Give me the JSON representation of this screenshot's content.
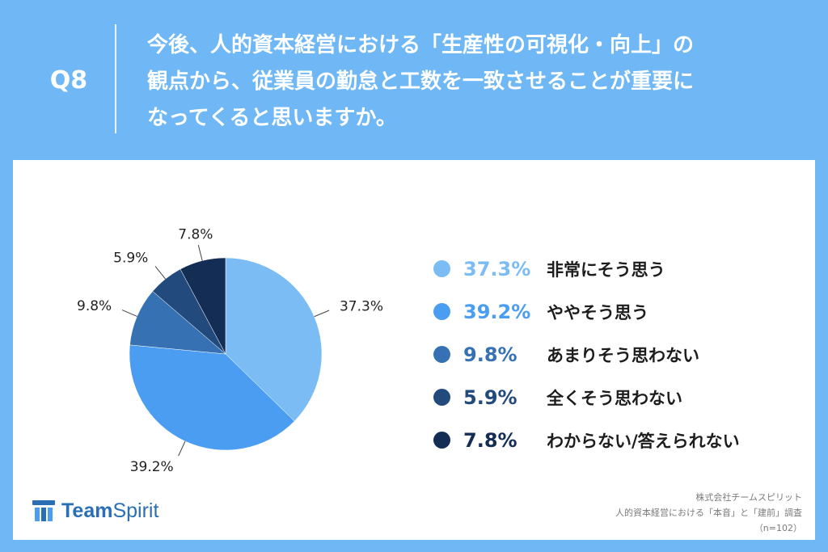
{
  "question": {
    "number": "Q8",
    "lines": [
      "今後、人的資本経営における「生産性の可視化・向上」の",
      "観点から、従業員の勤怠と工数を一致させることが重要に",
      "なってくると思いますか。"
    ]
  },
  "chart_data": {
    "type": "pie",
    "title": "",
    "slices": [
      {
        "label": "非常にそう思う",
        "value": 37.3,
        "display": "37.3%",
        "color": "#7bbcf4"
      },
      {
        "label": "ややそう思う",
        "value": 39.2,
        "display": "39.2%",
        "color": "#4a9df0"
      },
      {
        "label": "あまりそう思わない",
        "value": 9.8,
        "display": "9.8%",
        "color": "#3672b3"
      },
      {
        "label": "全くそう思わない",
        "value": 5.9,
        "display": "5.9%",
        "color": "#224a7c"
      },
      {
        "label": "わからない/答えられない",
        "value": 7.8,
        "display": "7.8%",
        "color": "#142d54"
      }
    ],
    "legend_position": "right"
  },
  "brand": {
    "team": "Team",
    "spirit": "Spirit"
  },
  "footer": {
    "line1": "株式会社チームスピリット",
    "line2": "人的資本経営における「本音」と「建前」調査",
    "line3": "（n=102）"
  }
}
